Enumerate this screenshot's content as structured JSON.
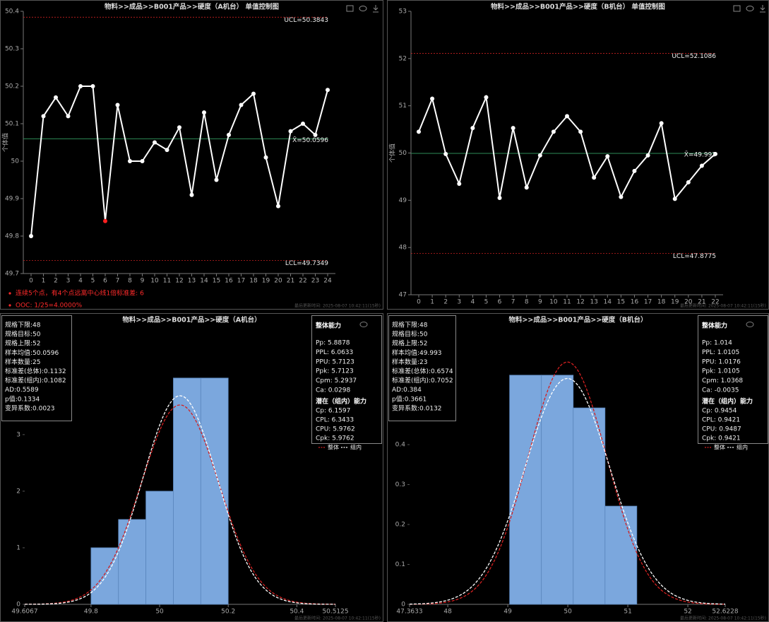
{
  "chart_data": [
    {
      "type": "line",
      "title": "物料>>成品>>B001产品>>硬度（A机台） 单值控制图",
      "y_label": "个体值",
      "x": [
        0,
        1,
        2,
        3,
        4,
        5,
        6,
        7,
        8,
        9,
        10,
        11,
        12,
        13,
        14,
        15,
        16,
        17,
        18,
        19,
        20,
        21,
        22,
        23,
        24
      ],
      "values": [
        49.8,
        50.12,
        50.17,
        50.12,
        50.2,
        50.2,
        49.84,
        50.15,
        50.0,
        50.0,
        50.05,
        50.03,
        50.09,
        49.91,
        50.13,
        49.95,
        50.07,
        50.15,
        50.18,
        50.01,
        49.88,
        50.08,
        50.1,
        50.07,
        50.19
      ],
      "color": "#ffffff",
      "highlight": [
        6
      ],
      "highlight_color": "#ff2020",
      "ylim": [
        49.7,
        50.4
      ],
      "yticks": [
        49.7,
        49.8,
        49.9,
        50,
        50.1,
        50.2,
        50.3,
        50.4
      ],
      "limits": [
        {
          "value": 50.3843,
          "label": "UCL=50.3843",
          "color": "#c82020",
          "style": "dashed"
        },
        {
          "value": 50.0596,
          "label": "X̄=50.0596",
          "color": "#2e8b57",
          "style": "solid"
        },
        {
          "value": 49.7349,
          "label": "LCL=49.7349",
          "color": "#c82020",
          "style": "dashed"
        }
      ],
      "notes": [
        "连续5个点，有4个点远离中心线1倍标准差: 6",
        "OOC: 1/25=4.0000%"
      ],
      "footer": "最后更新时间: 2025-08-07 10:42:11(15秒)"
    },
    {
      "type": "line",
      "title": "物料>>成品>>B001产品>>硬度（B机台） 单值控制图",
      "y_label": "个体值",
      "x": [
        0,
        1,
        2,
        3,
        4,
        5,
        6,
        7,
        8,
        9,
        10,
        11,
        12,
        13,
        14,
        15,
        16,
        17,
        18,
        19,
        20,
        21,
        22
      ],
      "values": [
        50.45,
        51.15,
        49.98,
        49.35,
        50.53,
        51.18,
        49.05,
        50.53,
        49.27,
        49.95,
        50.45,
        50.78,
        50.45,
        49.48,
        49.93,
        49.07,
        49.62,
        49.95,
        50.63,
        49.03,
        49.38,
        49.73,
        49.98
      ],
      "color": "#ffffff",
      "highlight": [],
      "highlight_color": "#ff2020",
      "ylim": [
        47,
        53
      ],
      "yticks": [
        47,
        48,
        49,
        50,
        51,
        52,
        53
      ],
      "limits": [
        {
          "value": 52.1086,
          "label": "UCL=52.1086",
          "color": "#c82020",
          "style": "dashed"
        },
        {
          "value": 49.993,
          "label": "X̄=49.993",
          "color": "#2e8b57",
          "style": "solid"
        },
        {
          "value": 47.8775,
          "label": "LCL=47.8775",
          "color": "#c82020",
          "style": "dashed"
        }
      ],
      "notes": [],
      "footer": "最后更新时间: 2025-08-07 10:42:11(15秒)"
    },
    {
      "type": "histogram",
      "title": "物料>>成品>>B001产品>>硬度（A机台）",
      "bins": [
        49.8,
        49.88,
        49.96,
        50.04,
        50.12,
        50.2
      ],
      "values": [
        1,
        1.5,
        2,
        4,
        4
      ],
      "color": "#7ba7dd",
      "xlim": [
        49.6067,
        50.5125
      ],
      "xticks": [
        49.6067,
        49.8,
        50,
        50.2,
        50.4,
        50.5125
      ],
      "ylim": [
        0,
        5.06
      ],
      "yticks": [
        0,
        1,
        2,
        3
      ],
      "curves": [
        {
          "name": "整体",
          "color": "#d42020",
          "mean": 50.0596,
          "sd": 0.1132
        },
        {
          "name": "组内",
          "color": "#ffffff",
          "mean": 50.0596,
          "sd": 0.1082
        }
      ],
      "stats": [
        "规格下限:48",
        "规格目标:50",
        "规格上限:52",
        "样本均值:50.0596",
        "样本数量:25",
        "标准差(总体):0.1132",
        "标准差(组内):0.1082",
        "AD:0.5589",
        "p值:0.1334",
        "变异系数:0.0023"
      ],
      "capability": {
        "overall_title": "整体能力",
        "overall": [
          "Pp: 5.8878",
          "PPL: 6.0633",
          "PPU: 5.7123",
          "Ppk: 5.7123",
          "Cpm: 5.2937",
          "Ca: 0.0298"
        ],
        "within_title": "潜在（组内）能力",
        "within": [
          "Cp: 6.1597",
          "CPL: 6.3433",
          "CPU: 5.9762",
          "Cpk: 5.9762"
        ]
      },
      "footer": "最后更新时间: 2025-08-07 10:42:11(15秒)"
    },
    {
      "type": "histogram",
      "title": "物料>>成品>>B001产品>>硬度（B机台）",
      "bins": [
        49.03,
        49.56,
        50.09,
        50.62,
        51.15
      ],
      "values": [
        0.574,
        0.574,
        0.492,
        0.246
      ],
      "color": "#7ba7dd",
      "xlim": [
        47.3633,
        52.6228
      ],
      "xticks": [
        47.3633,
        48,
        49,
        50,
        51,
        52,
        52.6228
      ],
      "ylim": [
        0,
        0.717
      ],
      "yticks": [
        0,
        0.1,
        0.2,
        0.3,
        0.4
      ],
      "curves": [
        {
          "name": "整体",
          "color": "#d42020",
          "mean": 49.993,
          "sd": 0.6574
        },
        {
          "name": "组内",
          "color": "#ffffff",
          "mean": 49.993,
          "sd": 0.7052
        }
      ],
      "stats": [
        "规格下限:48",
        "规格目标:50",
        "规格上限:52",
        "样本均值:49.993",
        "样本数量:23",
        "标准差(总体):0.6574",
        "标准差(组内):0.7052",
        "AD:0.384",
        "p值:0.3661",
        "变异系数:0.0132"
      ],
      "capability": {
        "overall_title": "整体能力",
        "overall": [
          "Pp: 1.014",
          "PPL: 1.0105",
          "PPU: 1.0176",
          "Ppk: 1.0105",
          "Cpm: 1.0368",
          "Ca: -0.0035"
        ],
        "within_title": "潜在（组内）能力",
        "within": [
          "Cp: 0.9454",
          "CPL: 0.9421",
          "CPU: 0.9487",
          "Cpk: 0.9421"
        ]
      },
      "footer": "最后更新时间: 2025-08-07 10:42:11(15秒)"
    }
  ]
}
